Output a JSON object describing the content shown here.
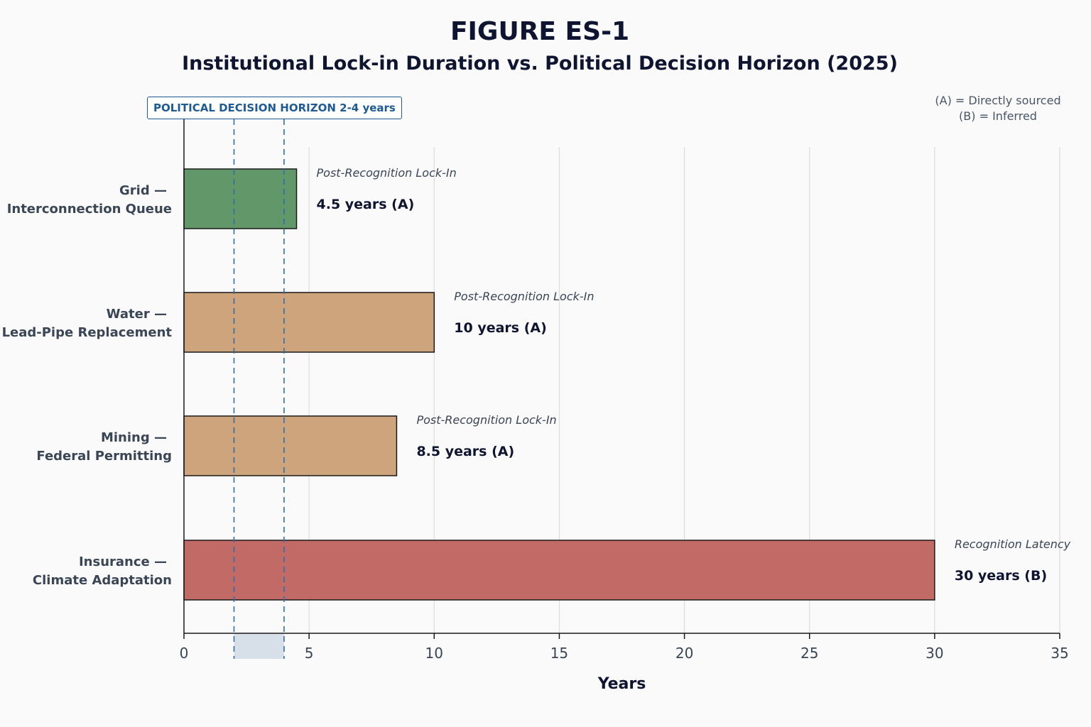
{
  "figure": {
    "title": "FIGURE ES-1",
    "subtitle": "Institutional Lock-in Duration vs. Political Decision Horizon (2025)"
  },
  "source_key": {
    "line_a": "(A) = Directly sourced",
    "line_b": "(B) = Inferred"
  },
  "horizon": {
    "label": "POLITICAL DECISION HORIZON  2-4 years",
    "range": [
      2,
      4
    ],
    "color": "#1f5a93"
  },
  "chart_data": {
    "type": "bar",
    "orientation": "horizontal",
    "xlabel": "Years",
    "ylabel": "",
    "xlim": [
      0,
      35
    ],
    "xticks": [
      0,
      5,
      10,
      15,
      20,
      25,
      30,
      35
    ],
    "grid": "vertical",
    "categories": [
      {
        "name": "Grid —",
        "subname": "Interconnection Queue",
        "value": 4.5,
        "type": "Post-Recognition Lock-In",
        "value_label": "4.5 years  (A)",
        "color": "#62976a"
      },
      {
        "name": "Water —",
        "subname": "Lead-Pipe Replacement",
        "value": 10,
        "type": "Post-Recognition Lock-In",
        "value_label": "10 years  (A)",
        "color": "#cda47c"
      },
      {
        "name": "Mining —",
        "subname": "Federal Permitting",
        "value": 8.5,
        "type": "Post-Recognition Lock-In",
        "value_label": "8.5 years  (A)",
        "color": "#cda47c"
      },
      {
        "name": "Insurance —",
        "subname": "Climate Adaptation",
        "value": 30,
        "type": "Recognition Latency",
        "value_label": "30 years  (B)",
        "color": "#c16a66"
      }
    ]
  }
}
